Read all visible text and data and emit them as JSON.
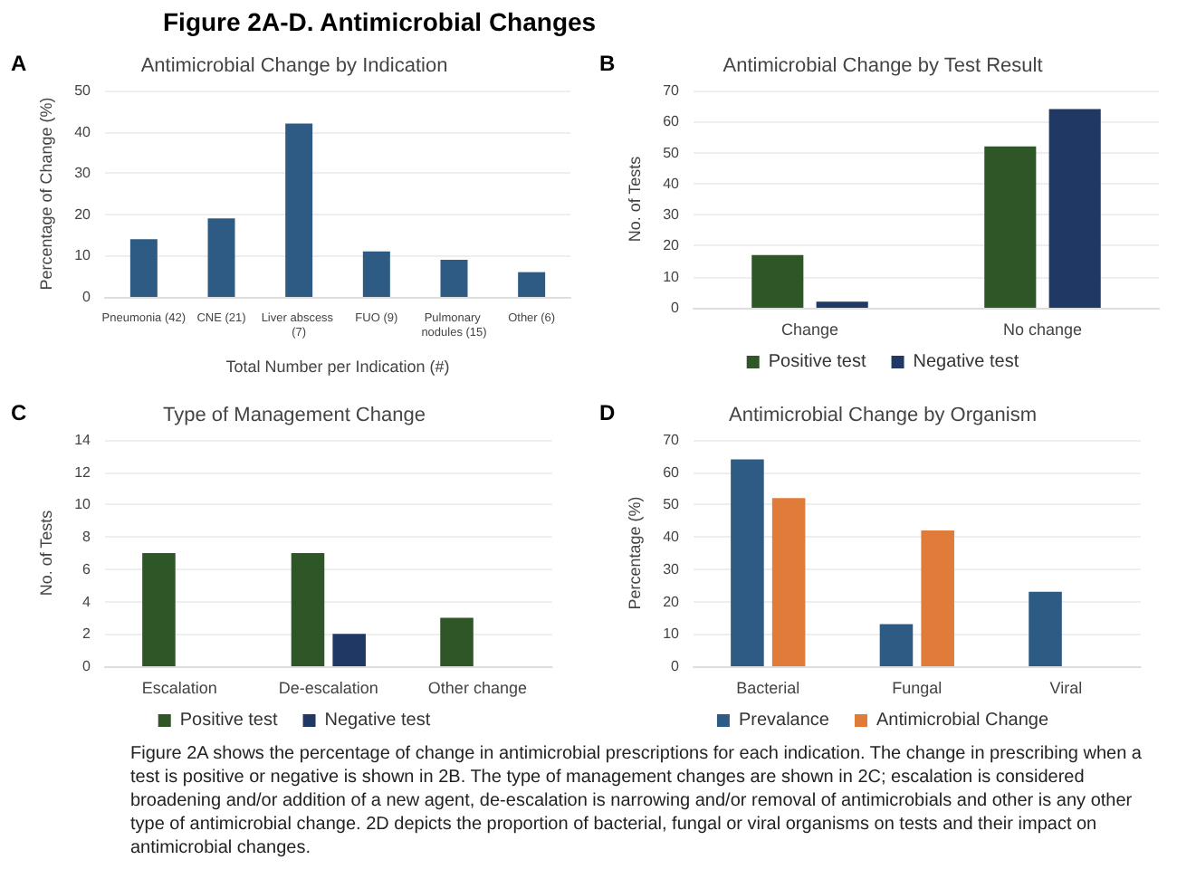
{
  "chart_data": [
    {
      "type": "bar",
      "title": "Antimicrobial Change by Indication",
      "xlabel": "Total Number per Indication (#)",
      "ylabel": "Percentage of Change (%)",
      "annotations": [
        "A",
        "Figure 2A-D. Antimicrobial Changes"
      ],
      "categories": [
        "Pneumonia (42)",
        "CNE (21)",
        "Liver abscess (7)",
        "FUO (9)",
        "Pulmonary nodules (15)",
        "Other (6)"
      ],
      "values": [
        14,
        19,
        42,
        11,
        9,
        6
      ],
      "color": "#2e5b84",
      "ylim": [
        0,
        50
      ],
      "yticks": [
        0,
        10,
        20,
        30,
        40,
        50
      ],
      "grid": "y",
      "legend": false
    },
    {
      "type": "bar",
      "title": "Antimicrobial Change by Test Result",
      "ylabel": "No. of Tests",
      "annotations": [
        "B"
      ],
      "categories": [
        "Change",
        "No change"
      ],
      "series": [
        {
          "name": "Positive test",
          "color": "#2e5627",
          "values": [
            17,
            52
          ]
        },
        {
          "name": "Negative test",
          "color": "#1f3864",
          "values": [
            2,
            64
          ]
        }
      ],
      "ylim": [
        0,
        70
      ],
      "yticks": [
        0,
        10,
        20,
        30,
        40,
        50,
        60,
        70
      ],
      "grid": "y",
      "legend": "bottom"
    },
    {
      "type": "bar",
      "title": "Type of Management Change",
      "ylabel": "No. of Tests",
      "annotations": [
        "C"
      ],
      "categories": [
        "Escalation",
        "De-escalation",
        "Other change"
      ],
      "series": [
        {
          "name": "Positive test",
          "color": "#2e5627",
          "values": [
            7,
            7,
            3
          ]
        },
        {
          "name": "Negative test",
          "color": "#1f3864",
          "values": [
            null,
            2,
            null
          ]
        }
      ],
      "ylim": [
        0,
        14
      ],
      "yticks": [
        0,
        2,
        4,
        6,
        8,
        10,
        12,
        14
      ],
      "grid": "y",
      "legend": "bottom"
    },
    {
      "type": "bar",
      "title": "Antimicrobial Change by Organism",
      "ylabel": "Percentage (%)",
      "annotations": [
        "D",
        "Figure 2A shows the percentage of change in antimicrobial prescriptions for each indication. The change in prescribing when a test is positive or negative is shown in 2B. The type of management changes are shown in 2C; escalation is considered broadening and/or addition of a new agent, de-escalation is narrowing and/or removal of antimicrobials and other is any other type of antimicrobial change. 2D depicts the proportion of bacterial, fungal or viral organisms on tests and their impact on antimicrobial changes."
      ],
      "categories": [
        "Bacterial",
        "Fungal",
        "Viral"
      ],
      "series": [
        {
          "name": "Prevalance",
          "color": "#2e5b84",
          "values": [
            64,
            13,
            23
          ]
        },
        {
          "name": "Antimicrobial Change",
          "color": "#e07b39",
          "values": [
            52,
            42,
            null
          ]
        }
      ],
      "ylim": [
        0,
        70
      ],
      "yticks": [
        0,
        10,
        20,
        30,
        40,
        50,
        60,
        70
      ],
      "grid": "y",
      "legend": "bottom"
    }
  ]
}
